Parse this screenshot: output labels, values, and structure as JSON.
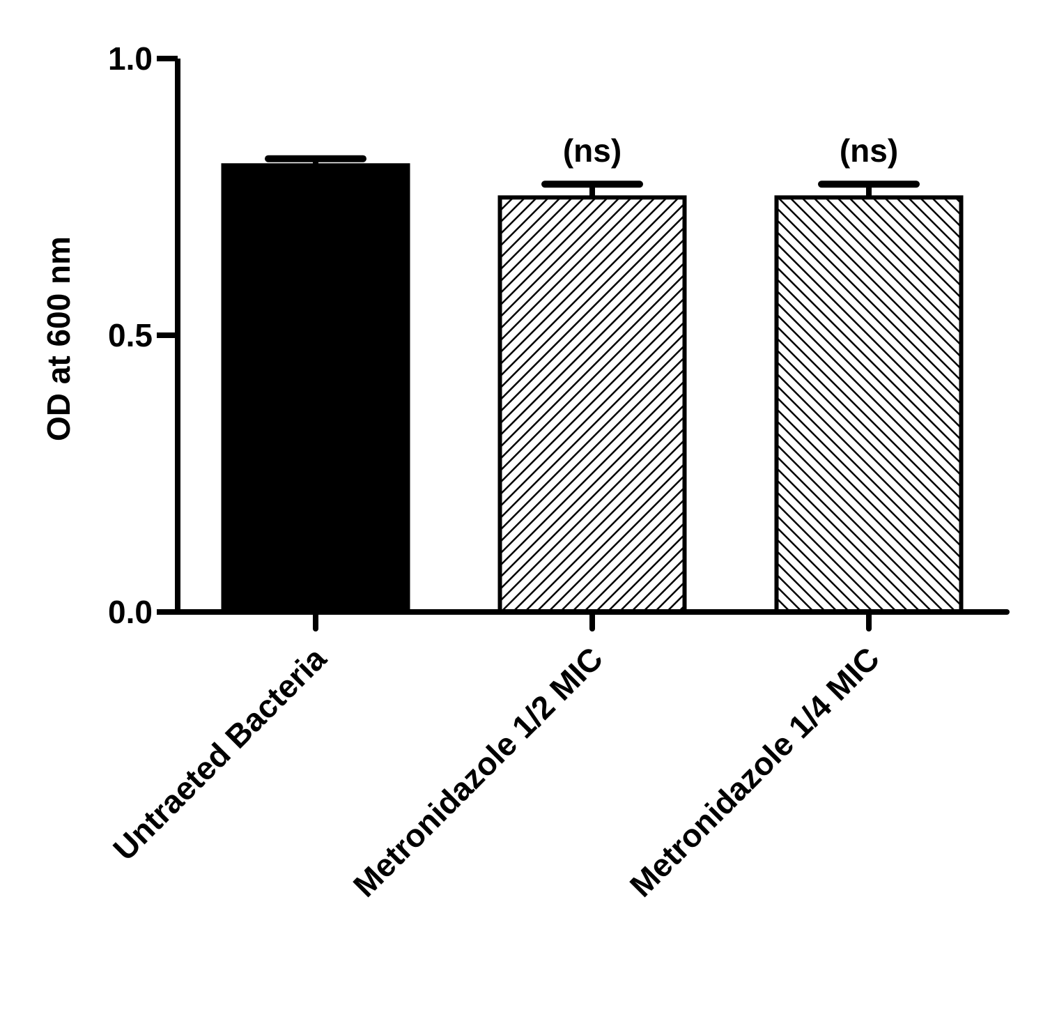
{
  "chart_data": {
    "type": "bar",
    "title": "",
    "xlabel": "",
    "ylabel": "OD at 600 nm",
    "ylim": [
      0,
      1.0
    ],
    "yticks": [
      {
        "value": 0.0,
        "label": "0.0"
      },
      {
        "value": 0.5,
        "label": "0.5"
      },
      {
        "value": 1.0,
        "label": "1.0"
      }
    ],
    "categories": [
      "Untraeted Bacteria",
      "Metronidazole 1/2 MIC",
      "Metronidazole 1/4 MIC"
    ],
    "values": [
      0.807,
      0.749,
      0.749
    ],
    "errors": [
      0.012,
      0.024,
      0.024
    ],
    "annotations": [
      "",
      "(ns)",
      "(ns)"
    ],
    "fills": [
      "solid",
      "hatch-forward",
      "hatch-back"
    ],
    "grid": false,
    "legend": "none",
    "colors": {
      "bar": "#000000",
      "background": "#ffffff"
    }
  }
}
